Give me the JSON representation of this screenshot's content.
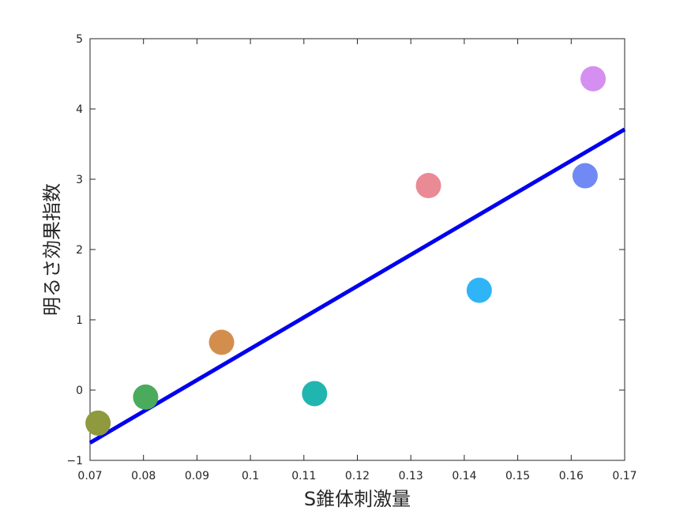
{
  "chart_data": {
    "type": "scatter",
    "xlabel": "S錐体刺激量",
    "ylabel": "明るさ効果指数",
    "xlim": [
      0.07,
      0.17
    ],
    "ylim": [
      -1,
      5
    ],
    "xticks": [
      0.07,
      0.08,
      0.09,
      0.1,
      0.11,
      0.12,
      0.13,
      0.14,
      0.15,
      0.16,
      0.17
    ],
    "xtick_labels": [
      "0.07",
      "0.08",
      "0.09",
      "0.1",
      "0.11",
      "0.12",
      "0.13",
      "0.14",
      "0.15",
      "0.16",
      "0.17"
    ],
    "yticks": [
      -1,
      0,
      1,
      2,
      3,
      4,
      5
    ],
    "ytick_labels": [
      "−1",
      "0",
      "1",
      "2",
      "3",
      "4",
      "5"
    ],
    "grid": false,
    "legend": "none",
    "points": [
      {
        "x": 0.0715,
        "y": -0.47,
        "color": "#8f9a3e"
      },
      {
        "x": 0.0804,
        "y": -0.1,
        "color": "#4aab5c"
      },
      {
        "x": 0.0946,
        "y": 0.68,
        "color": "#d38e4e"
      },
      {
        "x": 0.112,
        "y": -0.05,
        "color": "#21b5b0"
      },
      {
        "x": 0.1333,
        "y": 2.91,
        "color": "#ea8a94"
      },
      {
        "x": 0.1428,
        "y": 1.42,
        "color": "#2fb4f7"
      },
      {
        "x": 0.1626,
        "y": 3.05,
        "color": "#7089f4"
      },
      {
        "x": 0.1641,
        "y": 4.43,
        "color": "#d48ff0"
      }
    ],
    "fit_line": {
      "x": [
        0.07,
        0.17
      ],
      "y": [
        -0.75,
        3.71
      ],
      "color": "#0000ee"
    }
  }
}
